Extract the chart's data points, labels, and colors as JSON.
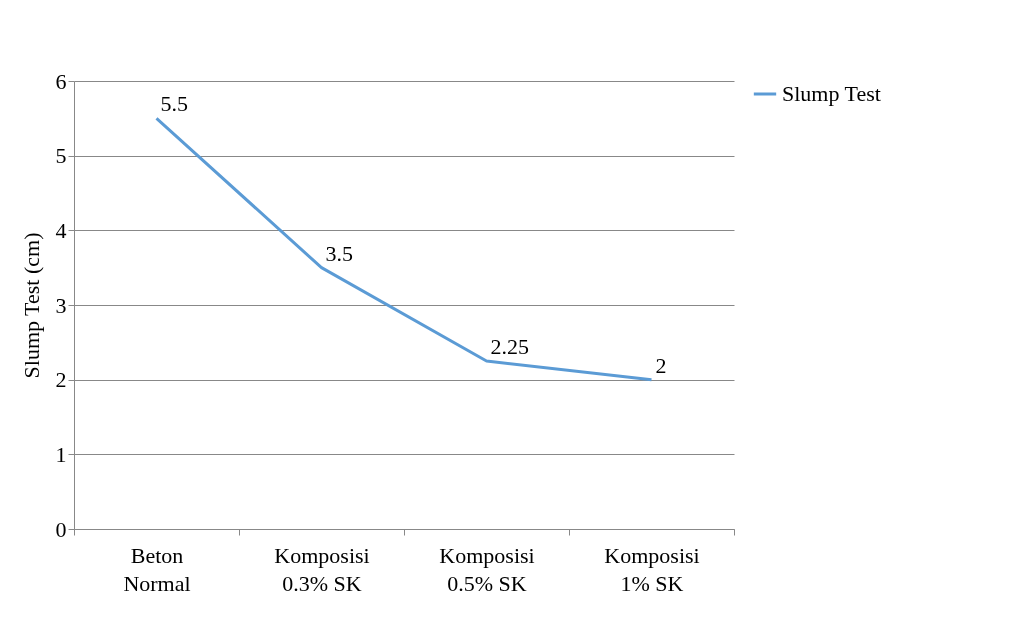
{
  "chart_data": {
    "type": "line",
    "ylabel": "Slump Test (cm)",
    "categories": [
      "Beton Normal",
      "Komposisi 0.3% SK",
      "Komposisi 0.5% SK",
      "Komposisi 1% SK"
    ],
    "series": [
      {
        "name": "Slump Test",
        "color": "#5b9bd5",
        "values": [
          5.5,
          3.5,
          2.25,
          2
        ]
      }
    ],
    "ylim": [
      0,
      6
    ],
    "yticks": [
      0,
      1,
      2,
      3,
      4,
      5,
      6
    ],
    "grid": "y",
    "legend": "right",
    "data_labels": true,
    "marker": "none",
    "line_style": "solid"
  }
}
